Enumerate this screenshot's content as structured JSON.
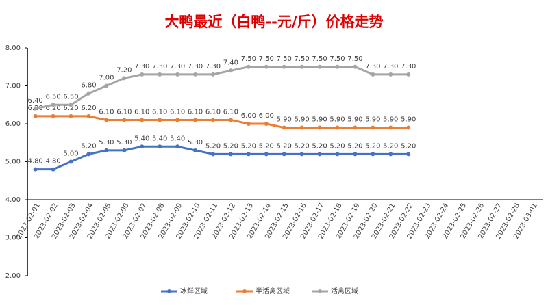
{
  "chart_data": {
    "type": "line",
    "title": "大鸭最近（白鸭--元/斤）价格走势",
    "categories": [
      "2023-02-01",
      "2023-02-02",
      "2023-02-03",
      "2023-02-04",
      "2023-02-05",
      "2023-02-06",
      "2023-02-07",
      "2023-02-08",
      "2023-02-09",
      "2023-02-10",
      "2023-02-11",
      "2023-02-12",
      "2023-02-13",
      "2023-02-14",
      "2023-02-15",
      "2023-02-16",
      "2023-02-17",
      "2023-02-18",
      "2023-02-19",
      "2023-02-20",
      "2023-02-21",
      "2023-02-22",
      "2023-02-23",
      "2023-02-24",
      "2023-02-25",
      "2023-02-26",
      "2023-02-27",
      "2023-02-28",
      "2023-03-01"
    ],
    "series": [
      {
        "name": "冰鲜区域",
        "color": "#4472c4",
        "values": [
          4.8,
          4.8,
          5.0,
          5.2,
          5.3,
          5.3,
          5.4,
          5.4,
          5.4,
          5.3,
          5.2,
          5.2,
          5.2,
          5.2,
          5.2,
          5.2,
          5.2,
          5.2,
          5.2,
          5.2,
          5.2,
          5.2,
          null,
          null,
          null,
          null,
          null,
          null,
          null
        ],
        "value_labels": [
          "4.80",
          "4.80",
          "5.00",
          "5.20",
          "5.30",
          "5.30",
          "5.40",
          "5.40",
          "5.40",
          "5.30",
          "5.20",
          "5.20",
          "5.20",
          "5.20",
          "5.20",
          "5.20",
          "5.20",
          "5.20",
          "5.20",
          "5.20",
          "5.20",
          "5.20",
          null,
          null,
          null,
          null,
          null,
          null,
          null
        ]
      },
      {
        "name": "半活禽区域",
        "color": "#ed7d31",
        "values": [
          6.2,
          6.2,
          6.2,
          6.2,
          6.1,
          6.1,
          6.1,
          6.1,
          6.1,
          6.1,
          6.1,
          6.1,
          6.0,
          6.0,
          5.9,
          5.9,
          5.9,
          5.9,
          5.9,
          5.9,
          5.9,
          5.9,
          null,
          null,
          null,
          null,
          null,
          null,
          null
        ],
        "value_labels": [
          "6.20",
          "6.20",
          "6.20",
          "6.20",
          "6.10",
          "6.10",
          "6.10",
          "6.10",
          "6.10",
          "6.10",
          "6.10",
          "6.10",
          "6.00",
          "6.00",
          "5.90",
          "5.90",
          "5.90",
          "5.90",
          "5.90",
          "5.90",
          "5.90",
          "5.90",
          null,
          null,
          null,
          null,
          null,
          null,
          null
        ]
      },
      {
        "name": "活禽区域",
        "color": "#a5a5a5",
        "values": [
          6.4,
          6.5,
          6.5,
          6.8,
          7.0,
          7.2,
          7.3,
          7.3,
          7.3,
          7.3,
          7.3,
          7.4,
          7.5,
          7.5,
          7.5,
          7.5,
          7.5,
          7.5,
          7.5,
          7.3,
          7.3,
          7.3,
          null,
          null,
          null,
          null,
          null,
          null,
          null
        ],
        "value_labels": [
          "6.40",
          "6.50",
          "6.50",
          "6.80",
          "7.00",
          "7.20",
          "7.30",
          "7.30",
          "7.30",
          "7.30",
          "7.30",
          "7.40",
          "7.50",
          "7.50",
          "7.50",
          "7.50",
          "7.50",
          "7.50",
          "7.50",
          "7.30",
          "7.30",
          "7.30",
          null,
          null,
          null,
          null,
          null,
          null,
          null
        ]
      }
    ],
    "ylim": [
      2,
      8
    ],
    "yticks": [
      {
        "value": 2,
        "label": "2.00"
      },
      {
        "value": 3,
        "label": "3.00"
      },
      {
        "value": 4,
        "label": "4.00"
      },
      {
        "value": 5,
        "label": "5.00"
      },
      {
        "value": 6,
        "label": "6.00"
      },
      {
        "value": 7,
        "label": "7.00"
      },
      {
        "value": 8,
        "label": "8.00"
      }
    ],
    "xaxis_at": 4,
    "legend": "bottom"
  }
}
